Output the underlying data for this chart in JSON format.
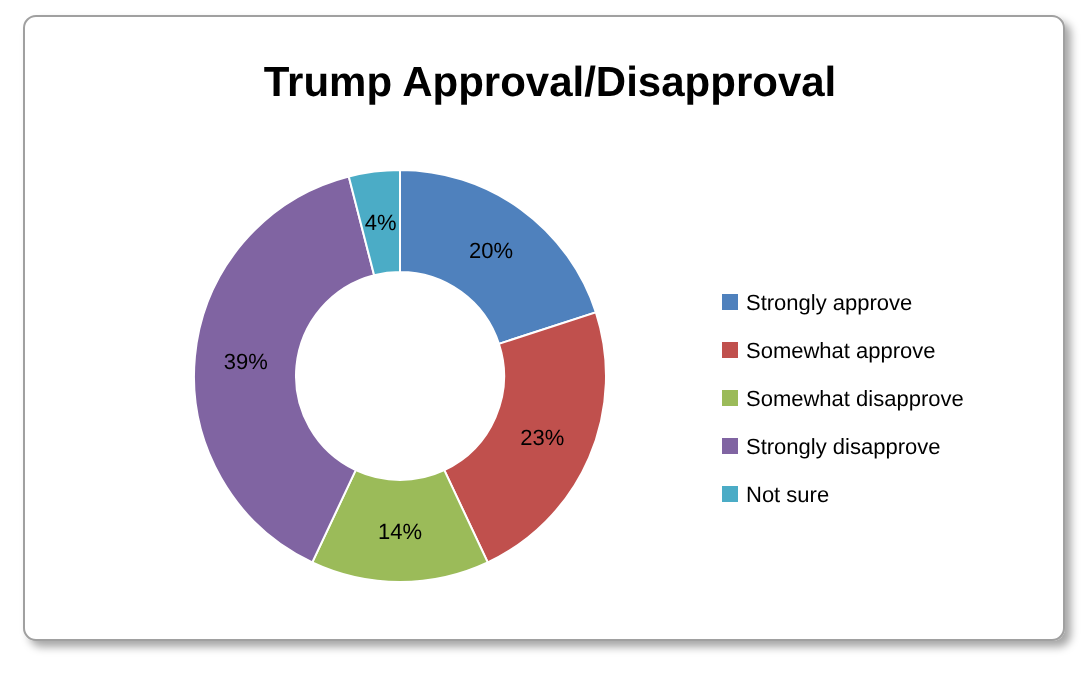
{
  "chart_data": {
    "type": "donut",
    "title": "Trump Approval/Disapproval",
    "categories": [
      "Strongly approve",
      "Somewhat approve",
      "Somewhat disapprove",
      "Strongly disapprove",
      "Not sure"
    ],
    "values": [
      20,
      23,
      14,
      39,
      4
    ],
    "colors": [
      "#4f81bd",
      "#c0504d",
      "#9bbb59",
      "#8064a2",
      "#4bacc6"
    ],
    "value_labels": [
      "20%",
      "23%",
      "14%",
      "39%",
      "4%"
    ],
    "legend": "right"
  }
}
